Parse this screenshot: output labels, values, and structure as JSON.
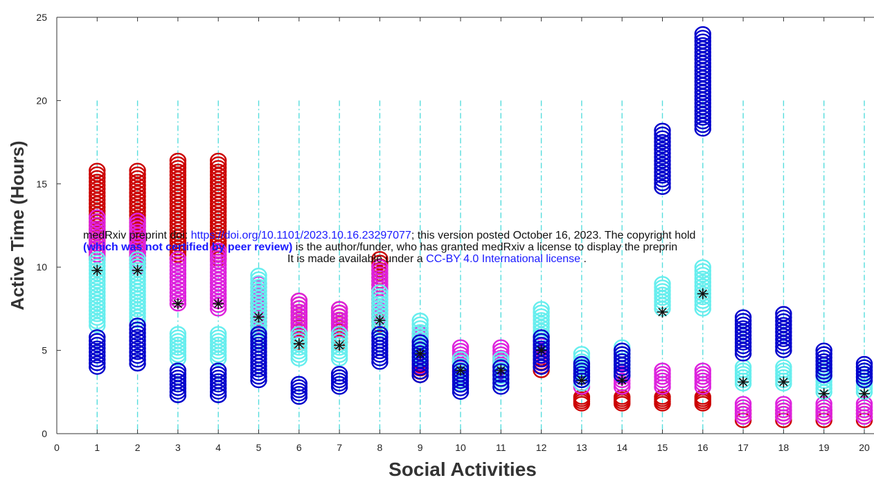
{
  "watermark": {
    "line1_prefix": "medRxiv preprint doi: ",
    "line1_link": "https://doi.org/10.1101/2023.10.16.23297077",
    "line1_suffix": "; this version posted October 16, 2023. The copyright hold",
    "line2_bold": "(which was not certified by peer review)",
    "line2_suffix": " is the author/funder, who has granted medRxiv a license to display the preprin",
    "line3_prefix": "It is made available under a ",
    "line3_link": "CC-BY 4.0 International license",
    "line3_suffix": " ."
  },
  "chart_data": {
    "type": "scatter",
    "title": "",
    "xlabel": "Social Activities",
    "ylabel": "Active Time (Hours)",
    "xlim": [
      0,
      20
    ],
    "ylim": [
      0,
      25
    ],
    "xticks": [
      0,
      1,
      2,
      3,
      4,
      5,
      6,
      7,
      8,
      9,
      10,
      11,
      12,
      13,
      14,
      15,
      16,
      17,
      18,
      19,
      20
    ],
    "yticks": [
      0,
      5,
      10,
      15,
      20,
      25
    ],
    "grid": "vertical dash-dot lines at each activity",
    "colors": {
      "red": "#cc0000",
      "magenta": "#dd22dd",
      "cyan": "#66eeee",
      "blue": "#0000cc",
      "mean": "#111111",
      "grid": "#55dddd"
    },
    "series": [
      {
        "color_key": "red",
        "marker": "circle",
        "ranges": [
          [
            1,
            10.5,
            15.8
          ],
          [
            2,
            10,
            15.8
          ],
          [
            3,
            10.5,
            16.4
          ],
          [
            4,
            10.5,
            16.4
          ],
          [
            5,
            6.5,
            7.8
          ],
          [
            6,
            5.5,
            8
          ],
          [
            7,
            5.5,
            7.5
          ],
          [
            8,
            6.5,
            10.5
          ],
          [
            9,
            3.5,
            4.5
          ],
          [
            10,
            3.5,
            4.5
          ],
          [
            11,
            3.5,
            4.5
          ],
          [
            12,
            3.8,
            4.5
          ],
          [
            13,
            1.8,
            2.2
          ],
          [
            14,
            1.8,
            2.2
          ],
          [
            15,
            1.8,
            2.2
          ],
          [
            16,
            1.8,
            2.2
          ],
          [
            17,
            0.8,
            1.4
          ],
          [
            18,
            0.8,
            1.4
          ],
          [
            19,
            0.8,
            1.4
          ],
          [
            20,
            0.8,
            1.4
          ]
        ]
      },
      {
        "color_key": "magenta",
        "marker": "circle",
        "ranges": [
          [
            1,
            10.5,
            13
          ],
          [
            2,
            10,
            12.8
          ],
          [
            3,
            7.8,
            10.5
          ],
          [
            4,
            7.5,
            11
          ],
          [
            5,
            6.5,
            9
          ],
          [
            6,
            6,
            8
          ],
          [
            7,
            6,
            7.5
          ],
          [
            8,
            7,
            10
          ],
          [
            9,
            4,
            6
          ],
          [
            10,
            3.5,
            5.2
          ],
          [
            11,
            3.5,
            5.2
          ],
          [
            12,
            4,
            5.5
          ],
          [
            13,
            2.8,
            3.6
          ],
          [
            14,
            2.8,
            3.6
          ],
          [
            15,
            2.8,
            3.8
          ],
          [
            16,
            2.8,
            3.8
          ],
          [
            17,
            1,
            1.8
          ],
          [
            18,
            1,
            1.8
          ],
          [
            19,
            1,
            1.8
          ],
          [
            20,
            1,
            1.8
          ]
        ]
      },
      {
        "color_key": "cyan",
        "marker": "circle",
        "ranges": [
          [
            1,
            6.5,
            10.5
          ],
          [
            2,
            6.8,
            10.5
          ],
          [
            3,
            4.5,
            6
          ],
          [
            4,
            4.5,
            6
          ],
          [
            5,
            5.5,
            9.5
          ],
          [
            6,
            4.5,
            6
          ],
          [
            7,
            4.5,
            6
          ],
          [
            8,
            6,
            8.5
          ],
          [
            9,
            4.5,
            6.8
          ],
          [
            10,
            3,
            4.5
          ],
          [
            11,
            3,
            4.5
          ],
          [
            12,
            5.5,
            7.5
          ],
          [
            13,
            3,
            4.8
          ],
          [
            14,
            3.5,
            5.2
          ],
          [
            15,
            7.5,
            9
          ],
          [
            16,
            7.5,
            10
          ],
          [
            17,
            3,
            4
          ],
          [
            18,
            3,
            4
          ],
          [
            19,
            2.5,
            4
          ],
          [
            20,
            2.5,
            4
          ]
        ]
      },
      {
        "color_key": "blue",
        "marker": "circle",
        "ranges": [
          [
            1,
            4,
            5.8
          ],
          [
            2,
            4.2,
            6.5
          ],
          [
            3,
            2.3,
            3.8
          ],
          [
            4,
            2.3,
            3.8
          ],
          [
            5,
            3.2,
            6
          ],
          [
            6,
            2.2,
            3
          ],
          [
            7,
            2.8,
            3.6
          ],
          [
            8,
            4.3,
            6
          ],
          [
            9,
            3.5,
            5.5
          ],
          [
            10,
            2.5,
            4
          ],
          [
            11,
            2.8,
            4
          ],
          [
            12,
            4,
            5.8
          ],
          [
            13,
            3.2,
            4.2
          ],
          [
            14,
            3.5,
            5
          ],
          [
            15,
            14.8,
            18.2
          ],
          [
            16,
            18.3,
            24
          ],
          [
            17,
            4.8,
            7
          ],
          [
            18,
            5,
            7.2
          ],
          [
            19,
            3.5,
            5
          ],
          [
            20,
            3.2,
            4.2
          ]
        ]
      },
      {
        "color_key": "mean",
        "marker": "asterisk",
        "points": [
          [
            1,
            9.8
          ],
          [
            2,
            9.8
          ],
          [
            3,
            7.8
          ],
          [
            4,
            7.8
          ],
          [
            5,
            7
          ],
          [
            6,
            5.4
          ],
          [
            7,
            5.3
          ],
          [
            8,
            6.8
          ],
          [
            9,
            4.8
          ],
          [
            10,
            3.8
          ],
          [
            11,
            3.8
          ],
          [
            12,
            5
          ],
          [
            13,
            3.2
          ],
          [
            14,
            3.2
          ],
          [
            15,
            7.3
          ],
          [
            16,
            8.4
          ],
          [
            17,
            3.1
          ],
          [
            18,
            3.1
          ],
          [
            19,
            2.4
          ],
          [
            20,
            2.4
          ]
        ]
      }
    ]
  }
}
